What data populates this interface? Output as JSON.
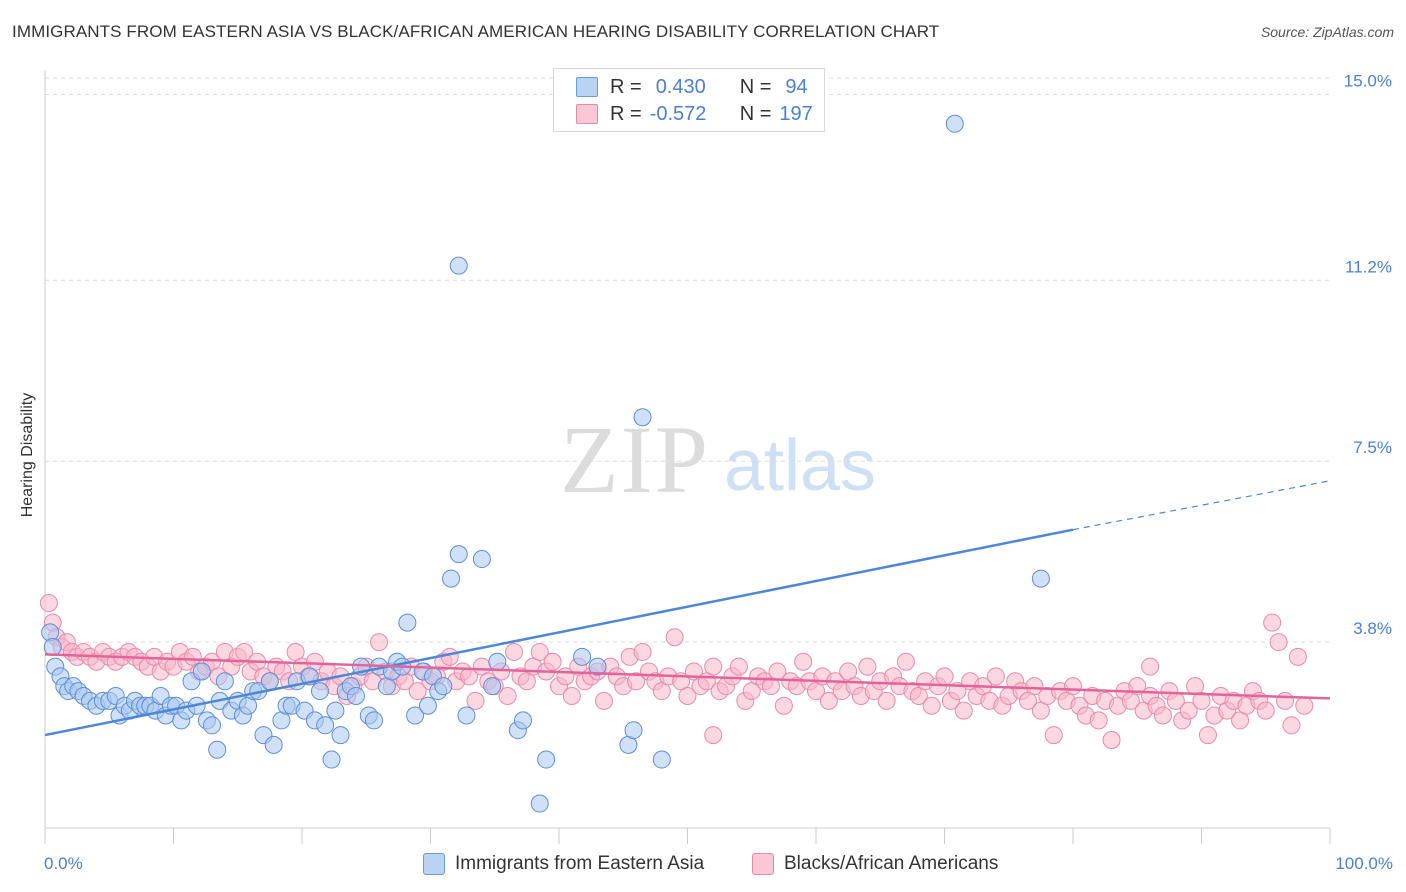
{
  "title": "IMMIGRANTS FROM EASTERN ASIA VS BLACK/AFRICAN AMERICAN HEARING DISABILITY CORRELATION CHART",
  "source": "Source: ZipAtlas.com",
  "watermark": {
    "zip": "ZIP",
    "atlas": "atlas"
  },
  "legend": {
    "rows": [
      {
        "r_label": "R =",
        "r_value": "0.430",
        "n_label": "N =",
        "n_value": "94",
        "color": "#a9c8f0",
        "stroke": "#5b8fd9"
      },
      {
        "r_label": "R =",
        "r_value": "-0.572",
        "n_label": "N =",
        "n_value": "197",
        "color": "#f8bdd0",
        "stroke": "#e57ea0"
      }
    ]
  },
  "colors": {
    "blue": "#4f86d6",
    "blue_fill": "#a9c8f0",
    "pink": "#e4649a",
    "pink_fill": "#f7b6cb",
    "tick": "#4a7fd4"
  },
  "chart_data": {
    "type": "scatter",
    "xlabel": "",
    "ylabel": "Hearing Disability",
    "xlim": [
      0,
      100
    ],
    "ylim": [
      0,
      15.5
    ],
    "x_tick_labels": {
      "left": "0.0%",
      "right": "100.0%"
    },
    "y_ticks": [
      {
        "value": 3.8,
        "label": "3.8%"
      },
      {
        "value": 7.5,
        "label": "7.5%"
      },
      {
        "value": 11.2,
        "label": "11.2%"
      },
      {
        "value": 15.0,
        "label": "15.0%"
      }
    ],
    "series": [
      {
        "name": "Immigrants from Eastern Asia",
        "trend": {
          "x0": 0,
          "y0": 1.9,
          "x1": 80,
          "y1": 6.1,
          "dash_to_x": 100,
          "dash_to_y": 7.1
        },
        "points": [
          [
            0.4,
            4.0
          ],
          [
            0.6,
            3.7
          ],
          [
            0.8,
            3.3
          ],
          [
            1.2,
            3.1
          ],
          [
            1.5,
            2.9
          ],
          [
            1.8,
            2.8
          ],
          [
            2.2,
            2.9
          ],
          [
            2.6,
            2.8
          ],
          [
            3,
            2.7
          ],
          [
            3.5,
            2.6
          ],
          [
            4,
            2.5
          ],
          [
            4.5,
            2.6
          ],
          [
            5,
            2.6
          ],
          [
            5.5,
            2.7
          ],
          [
            5.8,
            2.3
          ],
          [
            6.2,
            2.5
          ],
          [
            6.6,
            2.4
          ],
          [
            7,
            2.6
          ],
          [
            7.4,
            2.5
          ],
          [
            7.8,
            2.5
          ],
          [
            8.2,
            2.5
          ],
          [
            8.6,
            2.4
          ],
          [
            9,
            2.7
          ],
          [
            9.4,
            2.3
          ],
          [
            9.8,
            2.5
          ],
          [
            10.2,
            2.5
          ],
          [
            10.6,
            2.2
          ],
          [
            11,
            2.4
          ],
          [
            11.4,
            3.0
          ],
          [
            11.8,
            2.5
          ],
          [
            12.2,
            3.2
          ],
          [
            12.6,
            2.2
          ],
          [
            13,
            2.1
          ],
          [
            13.4,
            1.6
          ],
          [
            13.6,
            2.6
          ],
          [
            14,
            3.0
          ],
          [
            14.5,
            2.4
          ],
          [
            15,
            2.6
          ],
          [
            15.4,
            2.3
          ],
          [
            15.8,
            2.5
          ],
          [
            16.2,
            2.8
          ],
          [
            16.6,
            2.8
          ],
          [
            17,
            1.9
          ],
          [
            17.5,
            3.0
          ],
          [
            17.8,
            1.7
          ],
          [
            18.4,
            2.2
          ],
          [
            18.8,
            2.5
          ],
          [
            19.2,
            2.5
          ],
          [
            19.6,
            3.0
          ],
          [
            20.2,
            2.4
          ],
          [
            20.6,
            3.1
          ],
          [
            21,
            2.2
          ],
          [
            21.4,
            2.8
          ],
          [
            21.8,
            2.1
          ],
          [
            22.3,
            1.4
          ],
          [
            22.6,
            2.4
          ],
          [
            23,
            1.9
          ],
          [
            23.4,
            2.8
          ],
          [
            23.8,
            2.9
          ],
          [
            24.2,
            2.7
          ],
          [
            24.6,
            3.3
          ],
          [
            25.2,
            2.3
          ],
          [
            25.6,
            2.2
          ],
          [
            26,
            3.3
          ],
          [
            26.6,
            2.9
          ],
          [
            27,
            3.2
          ],
          [
            27.4,
            3.4
          ],
          [
            27.8,
            3.3
          ],
          [
            28.2,
            4.2
          ],
          [
            28.8,
            2.3
          ],
          [
            29.4,
            3.2
          ],
          [
            29.8,
            2.5
          ],
          [
            30.2,
            3.1
          ],
          [
            30.6,
            2.8
          ],
          [
            31,
            2.9
          ],
          [
            31.6,
            5.1
          ],
          [
            32.2,
            5.6
          ],
          [
            32.8,
            2.3
          ],
          [
            34,
            5.5
          ],
          [
            34.8,
            2.9
          ],
          [
            35.2,
            3.4
          ],
          [
            36.8,
            2.0
          ],
          [
            37.2,
            2.2
          ],
          [
            39,
            1.4
          ],
          [
            41.8,
            3.5
          ],
          [
            43,
            3.3
          ],
          [
            45.4,
            1.7
          ],
          [
            45.8,
            2.0
          ],
          [
            46.5,
            8.4
          ],
          [
            48,
            1.4
          ],
          [
            38.5,
            0.5
          ],
          [
            32.2,
            11.5
          ],
          [
            70.8,
            14.4
          ],
          [
            77.5,
            5.1
          ]
        ]
      },
      {
        "name": "Blacks/African Americans",
        "trend": {
          "x0": 0,
          "y0": 3.55,
          "x1": 100,
          "y1": 2.65
        },
        "points": [
          [
            0.3,
            4.6
          ],
          [
            0.6,
            4.2
          ],
          [
            0.9,
            3.9
          ],
          [
            1.3,
            3.7
          ],
          [
            1.7,
            3.8
          ],
          [
            2.1,
            3.6
          ],
          [
            2.5,
            3.5
          ],
          [
            3,
            3.6
          ],
          [
            3.5,
            3.5
          ],
          [
            4,
            3.4
          ],
          [
            4.5,
            3.6
          ],
          [
            5,
            3.5
          ],
          [
            5.5,
            3.4
          ],
          [
            6,
            3.5
          ],
          [
            6.5,
            3.6
          ],
          [
            7,
            3.5
          ],
          [
            7.5,
            3.4
          ],
          [
            8,
            3.3
          ],
          [
            8.5,
            3.5
          ],
          [
            9,
            3.2
          ],
          [
            9.5,
            3.4
          ],
          [
            10,
            3.3
          ],
          [
            10.5,
            3.6
          ],
          [
            11,
            3.4
          ],
          [
            11.5,
            3.5
          ],
          [
            12,
            3.2
          ],
          [
            12.5,
            3.3
          ],
          [
            13,
            3.4
          ],
          [
            13.5,
            3.1
          ],
          [
            14,
            3.6
          ],
          [
            14.5,
            3.3
          ],
          [
            15,
            3.5
          ],
          [
            15.5,
            3.6
          ],
          [
            16,
            3.2
          ],
          [
            16.5,
            3.4
          ],
          [
            17,
            3.1
          ],
          [
            17.5,
            3.0
          ],
          [
            18,
            3.3
          ],
          [
            18.5,
            3.2
          ],
          [
            19,
            3.0
          ],
          [
            19.5,
            3.6
          ],
          [
            20,
            3.3
          ],
          [
            20.5,
            3.1
          ],
          [
            21,
            3.4
          ],
          [
            21.5,
            3.0
          ],
          [
            22,
            3.2
          ],
          [
            22.5,
            2.9
          ],
          [
            23,
            3.1
          ],
          [
            23.5,
            2.7
          ],
          [
            24,
            2.9
          ],
          [
            24.5,
            3.1
          ],
          [
            25,
            3.3
          ],
          [
            25.5,
            3.0
          ],
          [
            26,
            3.8
          ],
          [
            26.5,
            3.2
          ],
          [
            27,
            2.9
          ],
          [
            27.5,
            3.1
          ],
          [
            28,
            3.0
          ],
          [
            28.5,
            3.3
          ],
          [
            29,
            2.8
          ],
          [
            29.5,
            3.2
          ],
          [
            30,
            3.0
          ],
          [
            30.5,
            3.1
          ],
          [
            31,
            3.4
          ],
          [
            31.5,
            3.5
          ],
          [
            32,
            3.0
          ],
          [
            32.5,
            3.2
          ],
          [
            33,
            3.1
          ],
          [
            33.5,
            2.6
          ],
          [
            34,
            3.3
          ],
          [
            34.5,
            3.0
          ],
          [
            35,
            2.9
          ],
          [
            35.5,
            3.2
          ],
          [
            36,
            2.7
          ],
          [
            36.5,
            3.6
          ],
          [
            37,
            3.1
          ],
          [
            37.5,
            3.0
          ],
          [
            38,
            3.3
          ],
          [
            38.5,
            3.6
          ],
          [
            39,
            3.2
          ],
          [
            39.5,
            3.4
          ],
          [
            40,
            2.9
          ],
          [
            40.5,
            3.1
          ],
          [
            41,
            2.7
          ],
          [
            41.5,
            3.3
          ],
          [
            42,
            3.0
          ],
          [
            42.5,
            3.1
          ],
          [
            43,
            3.2
          ],
          [
            43.5,
            2.6
          ],
          [
            44,
            3.3
          ],
          [
            44.5,
            3.1
          ],
          [
            45,
            2.9
          ],
          [
            45.5,
            3.5
          ],
          [
            46,
            3.0
          ],
          [
            46.5,
            3.6
          ],
          [
            47,
            3.2
          ],
          [
            47.5,
            3.0
          ],
          [
            48,
            2.8
          ],
          [
            48.5,
            3.1
          ],
          [
            49,
            3.9
          ],
          [
            49.5,
            3.0
          ],
          [
            50,
            2.7
          ],
          [
            50.5,
            3.2
          ],
          [
            51,
            2.9
          ],
          [
            51.5,
            3.0
          ],
          [
            52,
            3.3
          ],
          [
            52.5,
            2.8
          ],
          [
            53,
            2.9
          ],
          [
            53.5,
            3.1
          ],
          [
            54,
            3.3
          ],
          [
            54.5,
            2.6
          ],
          [
            55,
            2.8
          ],
          [
            55.5,
            3.1
          ],
          [
            56,
            3.0
          ],
          [
            56.5,
            2.9
          ],
          [
            57,
            3.2
          ],
          [
            57.5,
            2.5
          ],
          [
            58,
            3.0
          ],
          [
            58.5,
            2.9
          ],
          [
            59,
            3.4
          ],
          [
            59.5,
            3.0
          ],
          [
            60,
            2.8
          ],
          [
            60.5,
            3.1
          ],
          [
            61,
            2.6
          ],
          [
            61.5,
            3.0
          ],
          [
            62,
            2.8
          ],
          [
            62.5,
            3.2
          ],
          [
            63,
            2.9
          ],
          [
            63.5,
            2.7
          ],
          [
            64,
            3.3
          ],
          [
            64.5,
            2.8
          ],
          [
            65,
            3.0
          ],
          [
            65.5,
            2.6
          ],
          [
            66,
            3.1
          ],
          [
            66.5,
            2.9
          ],
          [
            67,
            3.4
          ],
          [
            67.5,
            2.8
          ],
          [
            68,
            2.7
          ],
          [
            68.5,
            3.0
          ],
          [
            69,
            2.5
          ],
          [
            69.5,
            2.9
          ],
          [
            70,
            3.1
          ],
          [
            70.5,
            2.6
          ],
          [
            71,
            2.8
          ],
          [
            71.5,
            2.4
          ],
          [
            72,
            3.0
          ],
          [
            72.5,
            2.7
          ],
          [
            73,
            2.9
          ],
          [
            73.5,
            2.6
          ],
          [
            74,
            3.1
          ],
          [
            74.5,
            2.5
          ],
          [
            75,
            2.7
          ],
          [
            75.5,
            3.0
          ],
          [
            76,
            2.8
          ],
          [
            76.5,
            2.6
          ],
          [
            77,
            2.9
          ],
          [
            77.5,
            2.4
          ],
          [
            78,
            2.7
          ],
          [
            78.5,
            1.9
          ],
          [
            79,
            2.8
          ],
          [
            79.5,
            2.6
          ],
          [
            80,
            2.9
          ],
          [
            80.5,
            2.5
          ],
          [
            81,
            2.3
          ],
          [
            81.5,
            2.7
          ],
          [
            82,
            2.2
          ],
          [
            82.5,
            2.6
          ],
          [
            83,
            1.8
          ],
          [
            83.5,
            2.5
          ],
          [
            84,
            2.8
          ],
          [
            84.5,
            2.6
          ],
          [
            85,
            2.9
          ],
          [
            85.5,
            2.4
          ],
          [
            86,
            2.7
          ],
          [
            86.5,
            2.5
          ],
          [
            87,
            2.3
          ],
          [
            87.5,
            2.8
          ],
          [
            88,
            2.6
          ],
          [
            88.5,
            2.2
          ],
          [
            89,
            2.4
          ],
          [
            89.5,
            2.9
          ],
          [
            90,
            2.6
          ],
          [
            90.5,
            1.9
          ],
          [
            91,
            2.3
          ],
          [
            91.5,
            2.7
          ],
          [
            92,
            2.4
          ],
          [
            92.5,
            2.6
          ],
          [
            93,
            2.2
          ],
          [
            93.5,
            2.5
          ],
          [
            94,
            2.8
          ],
          [
            94.5,
            2.6
          ],
          [
            95,
            2.4
          ],
          [
            95.5,
            4.2
          ],
          [
            96,
            3.8
          ],
          [
            96.5,
            2.6
          ],
          [
            97,
            2.1
          ],
          [
            97.5,
            3.5
          ],
          [
            98,
            2.5
          ],
          [
            52,
            1.9
          ],
          [
            86,
            3.3
          ]
        ]
      }
    ]
  },
  "bottom_legend": [
    "Immigrants from Eastern Asia",
    "Blacks/African Americans"
  ]
}
